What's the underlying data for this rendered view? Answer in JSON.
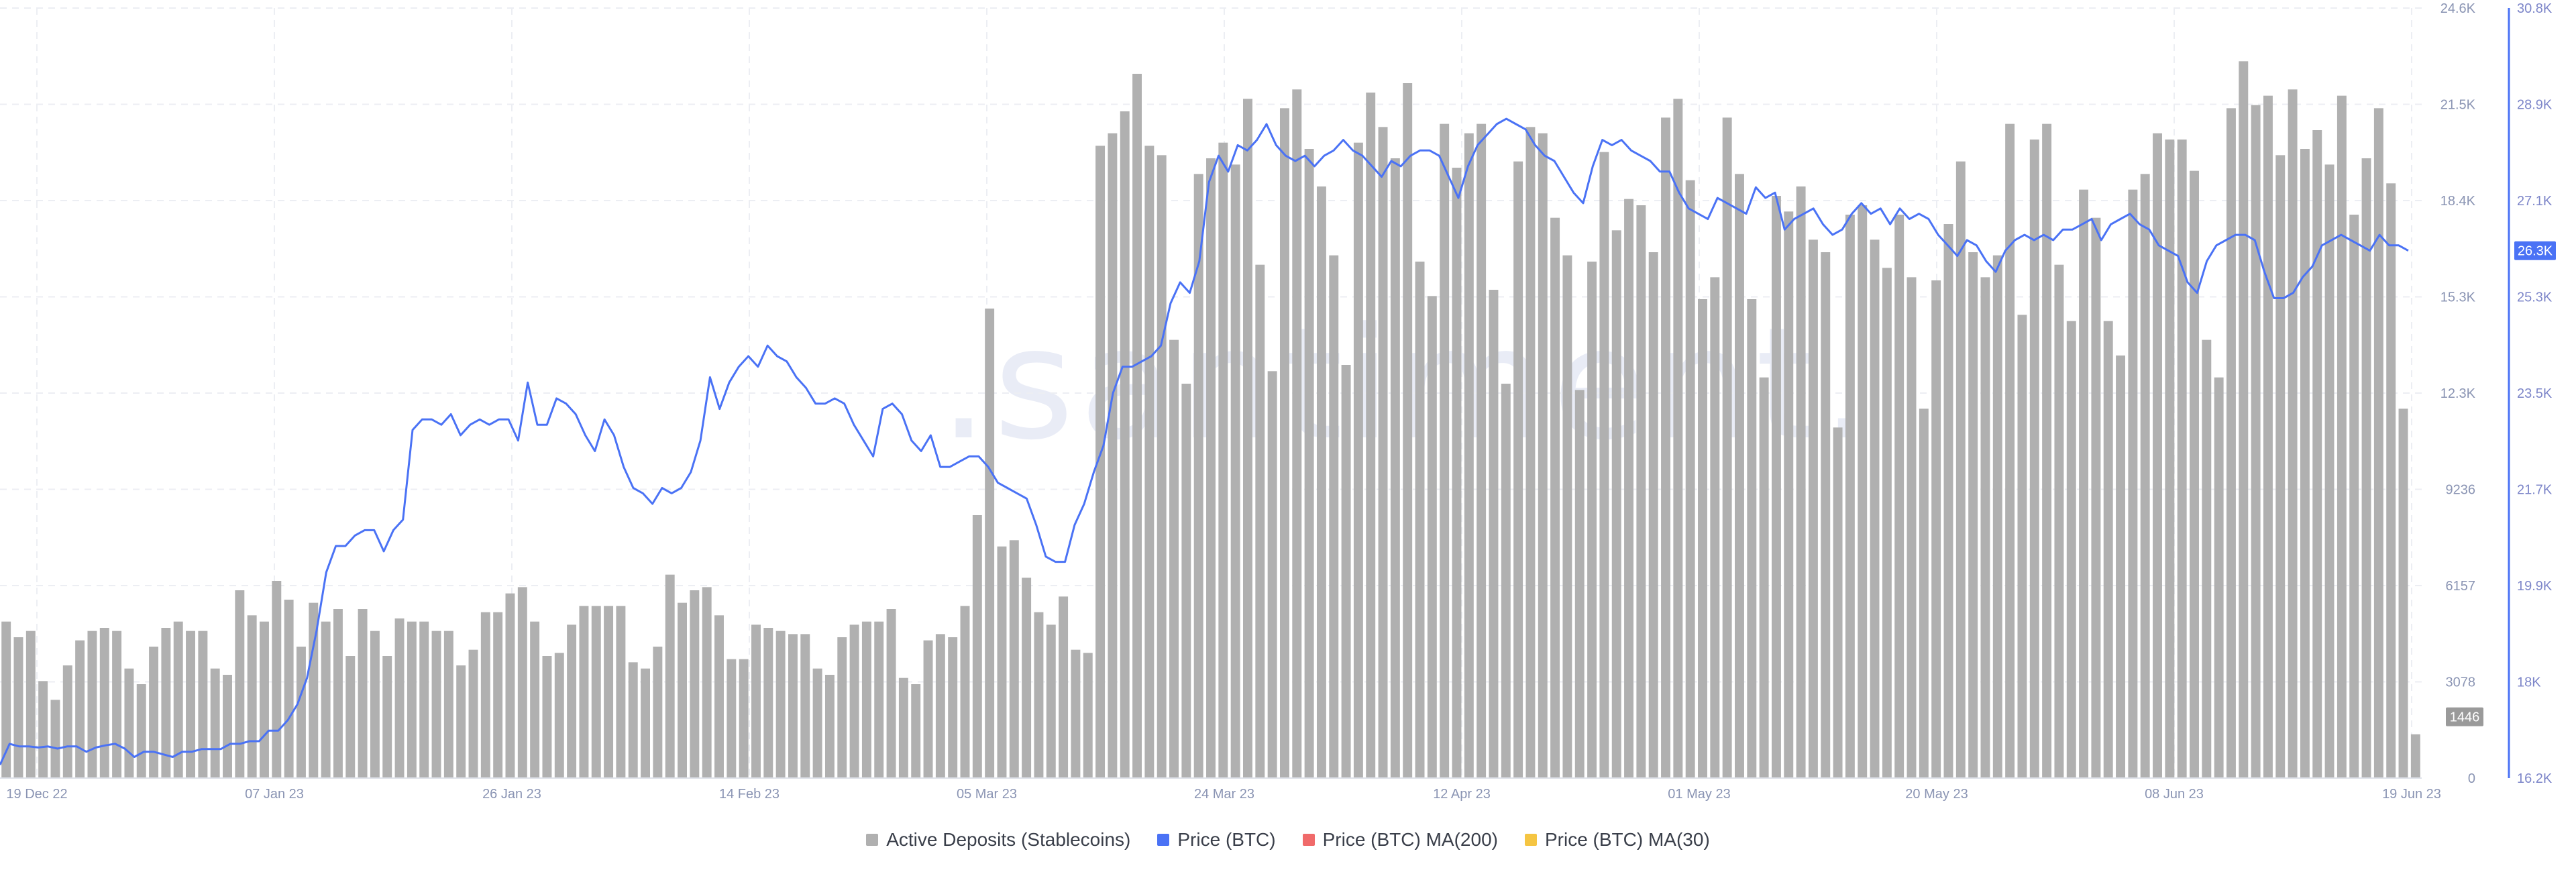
{
  "watermark": ".santiment.",
  "chart_data": {
    "type": "bar",
    "xlabel": "",
    "ylabel": "",
    "x_ticks": [
      "19 Dec 22",
      "07 Jan 23",
      "26 Jan 23",
      "14 Feb 23",
      "05 Mar 23",
      "24 Mar 23",
      "12 Apr 23",
      "01 May 23",
      "20 May 23",
      "08 Jun 23",
      "19 Jun 23"
    ],
    "y_left_ticks": [
      "0",
      "3078",
      "6157",
      "9236",
      "12.3K",
      "15.3K",
      "18.4K",
      "21.5K",
      "24.6K"
    ],
    "y_left_range": [
      0,
      24600
    ],
    "y_right_ticks": [
      "16.2K",
      "18K",
      "19.9K",
      "21.7K",
      "23.5K",
      "25.3K",
      "27.1K",
      "28.9K",
      "30.8K"
    ],
    "y_right_range": [
      16200,
      30800
    ],
    "last_bar_label": "1446",
    "last_price_label": "26.3K",
    "grid": true,
    "legend_position": "bottom",
    "legend": [
      {
        "label": "Active Deposits (Stablecoins)",
        "color": "#b0b0b0"
      },
      {
        "label": "Price (BTC)",
        "color": "#4a72f5"
      },
      {
        "label": "Price (BTC) MA(200)",
        "color": "#f06a6a"
      },
      {
        "label": "Price (BTC) MA(30)",
        "color": "#f5c542"
      }
    ],
    "dates_start": "2022-12-19",
    "series": [
      {
        "name": "Active Deposits (Stablecoins)",
        "type": "bar",
        "color": "#b0b0b0",
        "values": [
          5000,
          4500,
          4700,
          3100,
          2500,
          3600,
          4400,
          4700,
          4800,
          4700,
          3500,
          3000,
          4200,
          4800,
          5000,
          4700,
          4700,
          3500,
          3300,
          6000,
          5200,
          5000,
          6300,
          5700,
          4200,
          5600,
          5000,
          5400,
          3900,
          5400,
          4700,
          3900,
          5100,
          5000,
          5000,
          4700,
          4700,
          3600,
          4100,
          5300,
          5300,
          5900,
          6100,
          5000,
          3900,
          4000,
          4900,
          5500,
          5500,
          5500,
          5500,
          3700,
          3500,
          4200,
          6500,
          5600,
          6000,
          6100,
          5200,
          3800,
          3800,
          4900,
          4800,
          4700,
          4600,
          4600,
          3500,
          3300,
          4500,
          4900,
          5000,
          5000,
          5400,
          3200,
          3000,
          4400,
          4600,
          4500,
          5500,
          8400,
          15000,
          7400,
          7600,
          6400,
          5300,
          4900,
          5800,
          4100,
          4000,
          20200,
          20600,
          21300,
          22500,
          20200,
          19900,
          14000,
          12600,
          19300,
          19800,
          20300,
          19600,
          21700,
          16400,
          13000,
          21400,
          22000,
          20100,
          18900,
          16700,
          13200,
          20300,
          21900,
          20800,
          19800,
          22200,
          16500,
          15400,
          20900,
          19500,
          20600,
          20900,
          15600,
          12600,
          19700,
          20800,
          20600,
          17900,
          16700,
          12400,
          16500,
          20000,
          17500,
          18500,
          18300,
          16800,
          21100,
          21700,
          19100,
          15300,
          16000,
          21100,
          19300,
          15300,
          12800,
          18600,
          18100,
          18900,
          17200,
          16800,
          11200,
          18000,
          18300,
          17200,
          16300,
          18000,
          16000,
          11800,
          15900,
          17700,
          19700,
          16800,
          16000,
          16700,
          20900,
          14800,
          20400,
          20900,
          16400,
          14600,
          18800,
          17900,
          14600,
          13500,
          18800,
          19300,
          20600,
          20400,
          20400,
          19400,
          14000,
          12800,
          21400,
          22900,
          21500,
          21800,
          19900,
          22000,
          20100,
          20700,
          19600,
          21800,
          18000,
          19800,
          21400,
          19000,
          11800,
          1400
        ]
      },
      {
        "name": "Price (BTC)",
        "type": "line",
        "axis": "right",
        "color": "#4a72f5",
        "values": [
          16450,
          16850,
          16800,
          16800,
          16780,
          16800,
          16760,
          16800,
          16800,
          16700,
          16780,
          16820,
          16850,
          16760,
          16600,
          16700,
          16700,
          16650,
          16600,
          16700,
          16700,
          16750,
          16750,
          16750,
          16850,
          16850,
          16900,
          16900,
          17100,
          17100,
          17300,
          17600,
          18100,
          19000,
          20100,
          20600,
          20600,
          20800,
          20900,
          20900,
          20500,
          20900,
          21100,
          22800,
          23000,
          23000,
          22900,
          23100,
          22700,
          22900,
          23000,
          22900,
          23000,
          23000,
          22600,
          23700,
          22900,
          22900,
          23400,
          23300,
          23100,
          22700,
          22400,
          23000,
          22700,
          22100,
          21700,
          21600,
          21400,
          21700,
          21600,
          21700,
          22000,
          22600,
          23800,
          23200,
          23700,
          24000,
          24200,
          24000,
          24400,
          24200,
          24100,
          23800,
          23600,
          23300,
          23300,
          23400,
          23300,
          22900,
          22600,
          22300,
          23200,
          23300,
          23100,
          22600,
          22400,
          22700,
          22100,
          22100,
          22200,
          22300,
          22300,
          22100,
          21800,
          21700,
          21600,
          21500,
          21000,
          20400,
          20300,
          20300,
          21000,
          21400,
          22000,
          22500,
          23500,
          24000,
          24000,
          24100,
          24200,
          24400,
          25200,
          25600,
          25400,
          26000,
          27500,
          28000,
          27700,
          28200,
          28100,
          28300,
          28600,
          28200,
          28000,
          27900,
          28000,
          27800,
          28000,
          28100,
          28300,
          28100,
          28000,
          27800,
          27600,
          27900,
          27800,
          28000,
          28100,
          28100,
          28000,
          27600,
          27200,
          27800,
          28200,
          28400,
          28600,
          28700,
          28600,
          28500,
          28200,
          28000,
          27900,
          27600,
          27300,
          27100,
          27800,
          28300,
          28200,
          28300,
          28100,
          28000,
          27900,
          27700,
          27700,
          27300,
          27000,
          26900,
          26800,
          27200,
          27100,
          27000,
          26900,
          27400,
          27200,
          27300,
          26600,
          26800,
          26900,
          27000,
          26700,
          26500,
          26600,
          26900,
          27100,
          26900,
          27000,
          26700,
          27000,
          26800,
          26900,
          26800,
          26500,
          26300,
          26100,
          26400,
          26300,
          26000,
          25800,
          26200,
          26400,
          26500,
          26400,
          26500,
          26400,
          26600,
          26600,
          26700,
          26800,
          26400,
          26700,
          26800,
          26900,
          26700,
          26600,
          26300,
          26200,
          26100,
          25600,
          25400,
          26000,
          26300,
          26400,
          26500,
          26500,
          26400,
          25800,
          25300,
          25300,
          25400,
          25700,
          25900,
          26300,
          26400,
          26500,
          26400,
          26300,
          26200,
          26500,
          26300,
          26300,
          26200
        ]
      }
    ]
  }
}
